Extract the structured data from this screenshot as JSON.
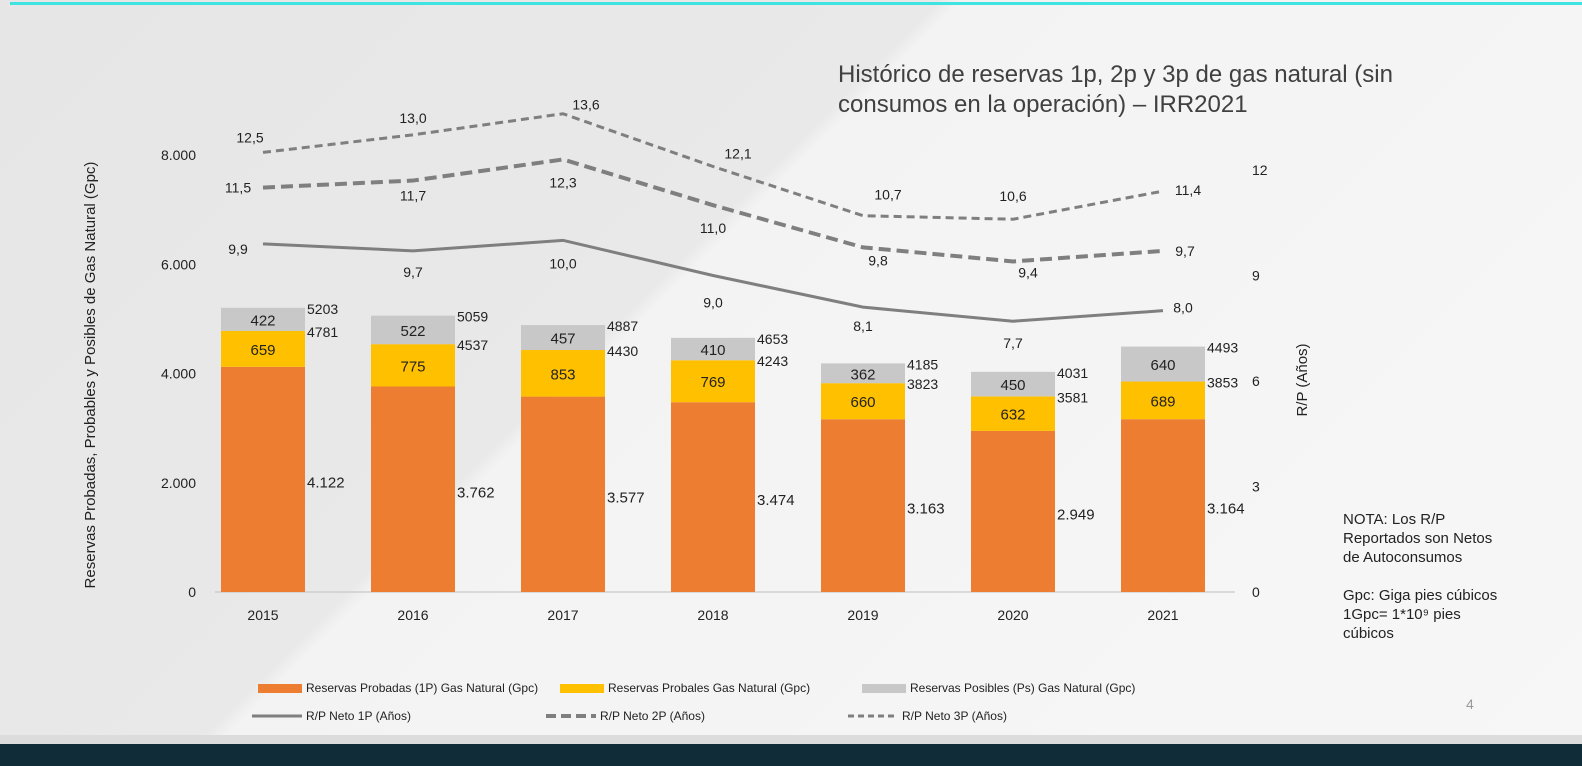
{
  "title": "Histórico de reservas 1p, 2p y 3p de gas natural (sin consumos en la operación) – IRR2021",
  "note": [
    "NOTA: Los R/P",
    "Reportados son Netos",
    "de Autoconsumos",
    "",
    "Gpc: Giga pies cúbicos",
    "1Gpc= 1*10⁹ pies",
    "cúbicos"
  ],
  "page_number": "4",
  "colors": {
    "probadas": "#ed7d31",
    "probables": "#ffc000",
    "posibles": "#c8c8c8",
    "lines": "#7f7f7f",
    "accent": "#3fe3e0",
    "footer": "#0f2c38"
  },
  "chart_data": {
    "type": "bar",
    "stacked": true,
    "title": "Histórico de reservas 1p, 2p y 3p de gas natural (sin consumos en la operación) – IRR2021",
    "categories": [
      "2015",
      "2016",
      "2017",
      "2018",
      "2019",
      "2020",
      "2021"
    ],
    "ylabel": "Reservas Probadas, Probables y Posibles de Gas Natural (Gpc)",
    "ylim": [
      0,
      8000
    ],
    "yticks": [
      "0",
      "2.000",
      "4.000",
      "6.000",
      "8.000"
    ],
    "y2label": "R/P (Años)",
    "y2lim": [
      0,
      12
    ],
    "y2ticks": [
      "0",
      "3",
      "6",
      "9",
      "12"
    ],
    "grid": false,
    "legend_position": "bottom",
    "series": [
      {
        "name": "Reservas Probadas (1P) Gas Natural (Gpc)",
        "kind": "bar",
        "values": [
          4122,
          3762,
          3577,
          3474,
          3163,
          2949,
          3164
        ],
        "labels": [
          "4.122",
          "3.762",
          "3.577",
          "3.474",
          "3.163",
          "2.949",
          "3.164"
        ]
      },
      {
        "name": "Reservas Probales Gas Natural (Gpc)",
        "kind": "bar",
        "values": [
          659,
          775,
          853,
          769,
          660,
          632,
          689
        ]
      },
      {
        "name": "Reservas Posibles (Ps) Gas Natural (Gpc)",
        "kind": "bar",
        "values": [
          422,
          522,
          457,
          410,
          362,
          450,
          640
        ]
      },
      {
        "name": "R/P Neto 1P (Años)",
        "kind": "line",
        "axis": "right",
        "style": "solid",
        "values": [
          9.9,
          9.7,
          10.0,
          9.0,
          8.1,
          7.7,
          8.0
        ],
        "labels": [
          "9,9",
          "9,7",
          "10,0",
          "9,0",
          "8,1",
          "7,7",
          "8,0"
        ]
      },
      {
        "name": "R/P Neto 2P  (Años)",
        "kind": "line",
        "axis": "right",
        "style": "dashed-thick",
        "values": [
          11.5,
          11.7,
          12.3,
          11.0,
          9.8,
          9.4,
          9.7
        ],
        "labels": [
          "11,5",
          "11,7",
          "12,3",
          "11,0",
          "9,8",
          "9,4",
          "9,7"
        ]
      },
      {
        "name": "R/P Neto 3P  (Años)",
        "kind": "line",
        "axis": "right",
        "style": "dashed",
        "values": [
          12.5,
          13.0,
          13.6,
          12.1,
          10.7,
          10.6,
          11.4
        ],
        "labels": [
          "12,5",
          "13,0",
          "13,6",
          "12,1",
          "10,7",
          "10,6",
          "11,4"
        ]
      }
    ],
    "totals_2p": [
      4781,
      4537,
      4430,
      4243,
      3823,
      3581,
      3853
    ],
    "totals_3p": [
      5203,
      5059,
      4887,
      4653,
      4185,
      4031,
      4493
    ]
  }
}
